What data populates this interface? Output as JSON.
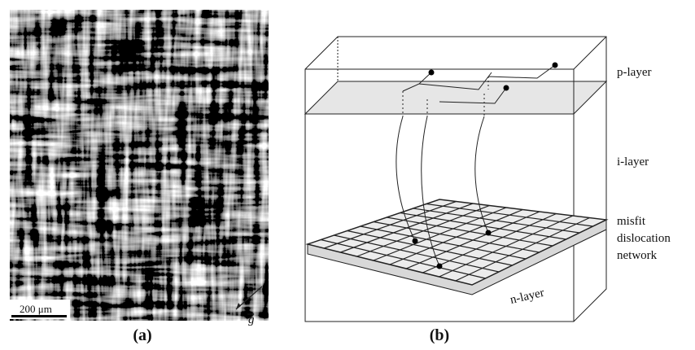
{
  "panel_a": {
    "caption": "(a)",
    "scale_bar_label": "200 μm",
    "vector_label": "g"
  },
  "panel_b": {
    "caption": "(b)",
    "p_layer": "p-layer",
    "i_layer": "i-layer",
    "network_lines": [
      "misfit",
      "dislocation",
      "network"
    ],
    "n_layer": "n-layer"
  }
}
